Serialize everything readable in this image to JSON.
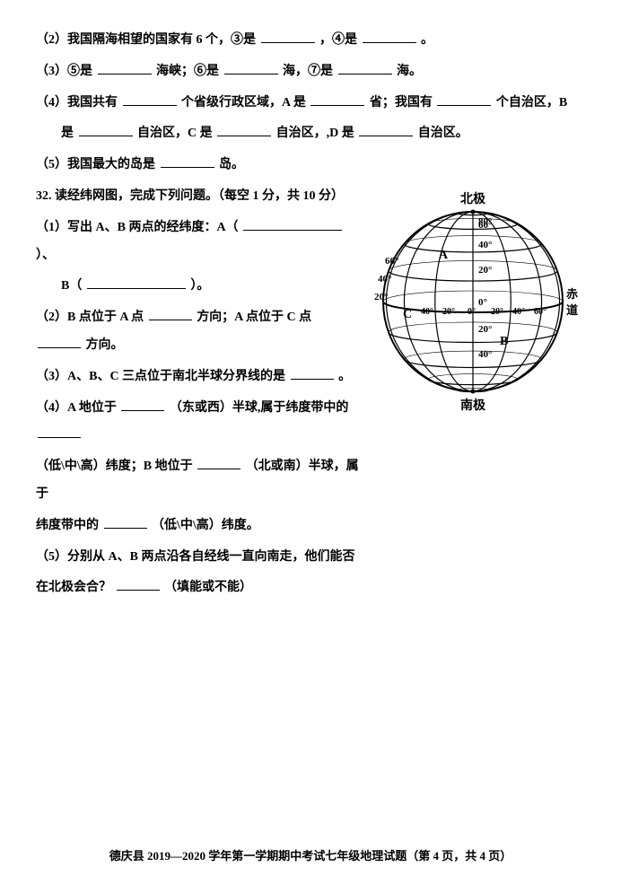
{
  "q2": {
    "text": "（2）我国隔海相望的国家有 6 个，③是",
    "mid": "，④是",
    "end": "。"
  },
  "q3": {
    "a": "（3）⑤是",
    "b": "海峡；⑥是",
    "c": "海，⑦是",
    "d": "海。"
  },
  "q4": {
    "a": "（4）我国共有",
    "b": "个省级行政区域，A 是",
    "c": "省；我国有",
    "d": "个自治区，B",
    "e": "是",
    "f": "自治区，C 是",
    "g": "自治区，,D 是",
    "h": "自治区。"
  },
  "q5": {
    "a": "（5）我国最大的岛是",
    "b": "岛。"
  },
  "q32": {
    "title": "32. 读经纬网图，完成下列问题。（每空 1 分，共 10 分）",
    "p1a": "（1）写出 A、B 两点的经纬度：A（",
    "p1b": "）、",
    "p1c": "B（",
    "p1d": "）。",
    "p2a": "（2）B 点位于 A 点",
    "p2b": "方向；A 点位于 C 点",
    "p2c": "方向。",
    "p3a": "（3）A、B、C 三点位于南北半球分界线的是",
    "p3b": "。",
    "p4a": "（4）A 地位于",
    "p4b": "（东或西）半球,属于纬度带中的",
    "p4c": "（低\\中\\高）纬度；B 地位于",
    "p4d": "（北或南）半球，属于",
    "p4e": "纬度带中的",
    "p4f": "（低\\中\\高）纬度。",
    "p5a": "（5）分别从 A、B 两点沿各自经线一直向南走，他们能否",
    "p5b": "在北极会合？",
    "p5c": "（填能或不能）"
  },
  "globe": {
    "north": "北极",
    "south": "南极",
    "equator1": "赤",
    "equator2": "道",
    "A": "A",
    "B": "B",
    "C": "C",
    "deg80n": "80°",
    "deg60n": "60°",
    "deg40n": "40°",
    "deg20n": "20°",
    "deg0": "0°",
    "deg20s": "20°",
    "deg40s": "40°",
    "degW60": "60°",
    "degW40": "40°",
    "degW20": "20°",
    "degE20": "20°",
    "degE40": "40°",
    "degE60": "60°",
    "stroke": "#000000",
    "fill": "#ffffff",
    "fontsize_label": 11,
    "fontsize_pole": 14
  },
  "blanks": {
    "w_short": 48,
    "w_med": 60,
    "w_long": 90,
    "w_xlong": 110
  },
  "footer": "德庆县 2019—2020 学年第一学期期中考试七年级地理试题（第 4 页，共 4 页）"
}
